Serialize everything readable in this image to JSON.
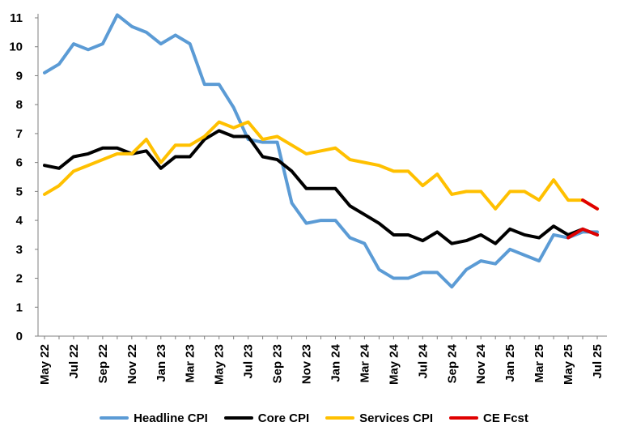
{
  "chart_data": {
    "type": "line",
    "title": "",
    "xlabel": "",
    "ylabel": "",
    "ylim": [
      0,
      11
    ],
    "yticks": [
      0,
      1,
      2,
      3,
      4,
      5,
      6,
      7,
      8,
      9,
      10,
      11
    ],
    "grid": false,
    "legend_position": "bottom",
    "x": [
      "May 22",
      "Jun 22",
      "Jul 22",
      "Aug 22",
      "Sep 22",
      "Oct 22",
      "Nov 22",
      "Dec 22",
      "Jan 23",
      "Feb 23",
      "Mar 23",
      "Apr 23",
      "May 23",
      "Jun 23",
      "Jul 23",
      "Aug 23",
      "Sep 23",
      "Oct 23",
      "Nov 23",
      "Dec 23",
      "Jan 24",
      "Feb 24",
      "Mar 24",
      "Apr 24",
      "May 24",
      "Jun 24",
      "Jul 24",
      "Aug 24",
      "Sep 24",
      "Oct 24",
      "Nov 24",
      "Dec 24",
      "Jan 25",
      "Feb 25",
      "Mar 25",
      "Apr 25",
      "May 25",
      "Jun 25",
      "Jul 25"
    ],
    "x_tick_labels": [
      "May 22",
      "Jul 22",
      "Sep 22",
      "Nov 22",
      "Jan 23",
      "Mar 23",
      "May 23",
      "Jul 23",
      "Sep 23",
      "Nov 23",
      "Jan 24",
      "Mar 24",
      "May 24",
      "Jul 24",
      "Sep 24",
      "Nov 24",
      "Jan 25",
      "Mar 25",
      "May 25",
      "Jul 25"
    ],
    "series": [
      {
        "name": "Headline CPI",
        "color": "#5b9bd5",
        "values": [
          9.1,
          9.4,
          10.1,
          9.9,
          10.1,
          11.1,
          10.7,
          10.5,
          10.1,
          10.4,
          10.1,
          8.7,
          8.7,
          7.9,
          6.8,
          6.7,
          6.7,
          4.6,
          3.9,
          4.0,
          4.0,
          3.4,
          3.2,
          2.3,
          2.0,
          2.0,
          2.2,
          2.2,
          1.7,
          2.3,
          2.6,
          2.5,
          3.0,
          2.8,
          2.6,
          3.5,
          3.4,
          3.6,
          3.6
        ]
      },
      {
        "name": "Core CPI",
        "color": "#000000",
        "values": [
          5.9,
          5.8,
          6.2,
          6.3,
          6.5,
          6.5,
          6.3,
          6.4,
          5.8,
          6.2,
          6.2,
          6.8,
          7.1,
          6.9,
          6.9,
          6.2,
          6.1,
          5.7,
          5.1,
          5.1,
          5.1,
          4.5,
          4.2,
          3.9,
          3.5,
          3.5,
          3.3,
          3.6,
          3.2,
          3.3,
          3.5,
          3.2,
          3.7,
          3.5,
          3.4,
          3.8,
          3.5,
          3.7,
          3.5
        ]
      },
      {
        "name": "Services CPI",
        "color": "#ffc000",
        "values": [
          4.9,
          5.2,
          5.7,
          5.9,
          6.1,
          6.3,
          6.3,
          6.8,
          6.0,
          6.6,
          6.6,
          6.9,
          7.4,
          7.2,
          7.4,
          6.8,
          6.9,
          6.6,
          6.3,
          6.4,
          6.5,
          6.1,
          6.0,
          5.9,
          5.7,
          5.7,
          5.2,
          5.6,
          4.9,
          5.0,
          5.0,
          4.4,
          5.0,
          5.0,
          4.7,
          5.4,
          4.7,
          4.7,
          4.4
        ]
      },
      {
        "name": "CE Fcst",
        "color": "#e00000",
        "values": [
          null,
          null,
          null,
          null,
          null,
          null,
          null,
          null,
          null,
          null,
          null,
          null,
          null,
          null,
          null,
          null,
          null,
          null,
          null,
          null,
          null,
          null,
          null,
          null,
          null,
          null,
          null,
          null,
          null,
          null,
          null,
          null,
          null,
          null,
          null,
          null,
          null,
          null,
          null
        ],
        "segments": [
          {
            "from": "May 25",
            "values": [
              3.4,
              3.7,
              3.5
            ]
          },
          {
            "from": "Jun 25",
            "values": [
              4.7,
              4.4
            ]
          }
        ]
      }
    ]
  }
}
